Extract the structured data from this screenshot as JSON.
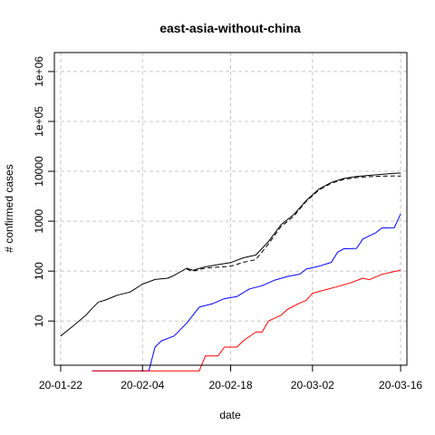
{
  "chart_data": {
    "type": "line",
    "title": "east-asia-without-china",
    "xlabel": "date",
    "ylabel": "# confirmed cases",
    "y_scale": "log",
    "xlim": [
      "2020-01-21",
      "2020-03-17"
    ],
    "ylim": [
      1.3,
      2400000
    ],
    "grid": true,
    "x_ticks": [
      {
        "date": "2020-01-22",
        "label": "20-01-22"
      },
      {
        "date": "2020-02-04",
        "label": "20-02-04"
      },
      {
        "date": "2020-02-18",
        "label": "20-02-18"
      },
      {
        "date": "2020-03-02",
        "label": "20-03-02"
      },
      {
        "date": "2020-03-16",
        "label": "20-03-16"
      }
    ],
    "y_ticks": [
      {
        "value": 10,
        "label": "10"
      },
      {
        "value": 100,
        "label": "100"
      },
      {
        "value": 1000,
        "label": "1000"
      },
      {
        "value": 10000,
        "label": "10000"
      },
      {
        "value": 100000,
        "label": "1e+05"
      },
      {
        "value": 1000000,
        "label": "1e+06"
      }
    ],
    "series": [
      {
        "color": "#000000",
        "dash": "solid",
        "points": [
          [
            "2020-01-22",
            5
          ],
          [
            "2020-01-24",
            8
          ],
          [
            "2020-01-26",
            13
          ],
          [
            "2020-01-27",
            18
          ],
          [
            "2020-01-28",
            24
          ],
          [
            "2020-01-29",
            26
          ],
          [
            "2020-01-31",
            33
          ],
          [
            "2020-02-02",
            38
          ],
          [
            "2020-02-04",
            55
          ],
          [
            "2020-02-06",
            68
          ],
          [
            "2020-02-08",
            72
          ],
          [
            "2020-02-09",
            82
          ],
          [
            "2020-02-11",
            114
          ],
          [
            "2020-02-12",
            104
          ],
          [
            "2020-02-14",
            122
          ],
          [
            "2020-02-16",
            135
          ],
          [
            "2020-02-18",
            148
          ],
          [
            "2020-02-20",
            185
          ],
          [
            "2020-02-22",
            210
          ],
          [
            "2020-02-24",
            390
          ],
          [
            "2020-02-26",
            850
          ],
          [
            "2020-02-28",
            1350
          ],
          [
            "2020-03-01",
            2600
          ],
          [
            "2020-03-03",
            4400
          ],
          [
            "2020-03-05",
            6000
          ],
          [
            "2020-03-07",
            7200
          ],
          [
            "2020-03-09",
            7900
          ],
          [
            "2020-03-11",
            8300
          ],
          [
            "2020-03-13",
            8700
          ],
          [
            "2020-03-15",
            9100
          ],
          [
            "2020-03-16",
            9200
          ]
        ]
      },
      {
        "color": "#000000",
        "dash": "dashed",
        "points": [
          [
            "2020-02-11",
            110
          ],
          [
            "2020-02-12",
            100
          ],
          [
            "2020-02-14",
            115
          ],
          [
            "2020-02-16",
            120
          ],
          [
            "2020-02-18",
            125
          ],
          [
            "2020-02-20",
            150
          ],
          [
            "2020-02-22",
            170
          ],
          [
            "2020-02-24",
            350
          ],
          [
            "2020-02-26",
            780
          ],
          [
            "2020-02-28",
            1250
          ],
          [
            "2020-03-01",
            2500
          ],
          [
            "2020-03-03",
            4200
          ],
          [
            "2020-03-05",
            5800
          ],
          [
            "2020-03-07",
            6900
          ],
          [
            "2020-03-09",
            7500
          ],
          [
            "2020-03-11",
            7800
          ],
          [
            "2020-03-13",
            8000
          ],
          [
            "2020-03-15",
            8100
          ],
          [
            "2020-03-16",
            8000
          ]
        ]
      },
      {
        "color": "#0000ff",
        "dash": "solid",
        "points": [
          [
            "2020-01-27",
            1
          ],
          [
            "2020-02-05",
            1
          ],
          [
            "2020-02-06",
            3
          ],
          [
            "2020-02-07",
            4
          ],
          [
            "2020-02-09",
            5
          ],
          [
            "2020-02-11",
            9
          ],
          [
            "2020-02-12",
            13
          ],
          [
            "2020-02-13",
            19
          ],
          [
            "2020-02-15",
            22
          ],
          [
            "2020-02-17",
            28
          ],
          [
            "2020-02-19",
            31
          ],
          [
            "2020-02-21",
            44
          ],
          [
            "2020-02-23",
            51
          ],
          [
            "2020-02-25",
            66
          ],
          [
            "2020-02-27",
            78
          ],
          [
            "2020-02-29",
            87
          ],
          [
            "2020-03-01",
            110
          ],
          [
            "2020-03-03",
            125
          ],
          [
            "2020-03-05",
            150
          ],
          [
            "2020-03-06",
            240
          ],
          [
            "2020-03-07",
            280
          ],
          [
            "2020-03-09",
            285
          ],
          [
            "2020-03-10",
            440
          ],
          [
            "2020-03-12",
            580
          ],
          [
            "2020-03-13",
            730
          ],
          [
            "2020-03-15",
            740
          ],
          [
            "2020-03-16",
            1400
          ]
        ]
      },
      {
        "color": "#ff0000",
        "dash": "solid",
        "points": [
          [
            "2020-01-27",
            1
          ],
          [
            "2020-02-13",
            1
          ],
          [
            "2020-02-14",
            2
          ],
          [
            "2020-02-16",
            2
          ],
          [
            "2020-02-17",
            3
          ],
          [
            "2020-02-19",
            3
          ],
          [
            "2020-02-20",
            4
          ],
          [
            "2020-02-22",
            6
          ],
          [
            "2020-02-23",
            6
          ],
          [
            "2020-02-24",
            10
          ],
          [
            "2020-02-26",
            13
          ],
          [
            "2020-02-27",
            17
          ],
          [
            "2020-02-29",
            23
          ],
          [
            "2020-03-01",
            26
          ],
          [
            "2020-03-02",
            36
          ],
          [
            "2020-03-04",
            42
          ],
          [
            "2020-03-06",
            49
          ],
          [
            "2020-03-08",
            58
          ],
          [
            "2020-03-10",
            72
          ],
          [
            "2020-03-11",
            67
          ],
          [
            "2020-03-13",
            86
          ],
          [
            "2020-03-15",
            98
          ],
          [
            "2020-03-16",
            104
          ]
        ]
      }
    ]
  }
}
